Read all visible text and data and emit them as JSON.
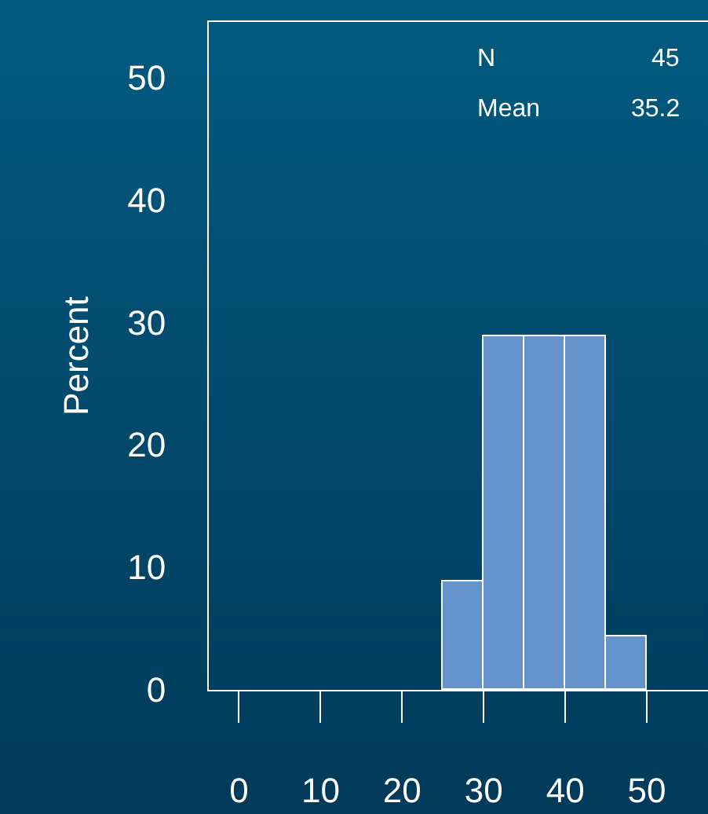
{
  "chart_data": {
    "type": "histogram",
    "ylabel": "Percent",
    "bins": [
      25,
      30,
      35,
      40,
      45,
      50
    ],
    "values": [
      8.9,
      28.9,
      28.9,
      28.9,
      4.4
    ],
    "color": "#6594cc",
    "xlim": [
      -3.7,
      57.5
    ],
    "xticks": [
      0,
      10,
      20,
      30,
      40,
      50
    ],
    "ylim": [
      0,
      54.5
    ],
    "yticks": [
      0,
      10,
      20,
      30,
      40,
      50
    ],
    "grid": false,
    "legend": false,
    "annotations": [
      "N",
      "45",
      "Mean",
      "35.2"
    ]
  }
}
